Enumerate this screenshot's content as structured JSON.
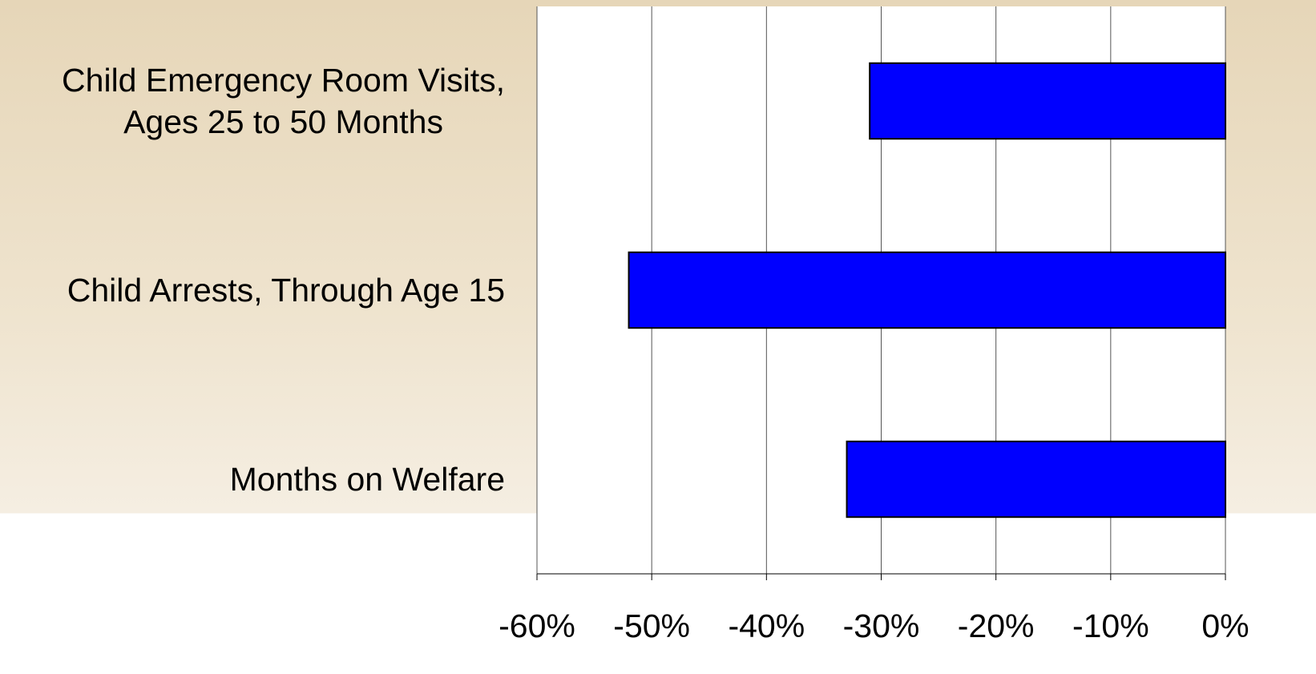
{
  "chart_data": {
    "type": "bar",
    "orientation": "horizontal",
    "categories": [
      "Child Emergency Room Visits,\nAges 25 to 50 Months",
      "Child Arrests, Through Age 15",
      "Months on Welfare"
    ],
    "values": [
      -31,
      -52,
      -33
    ],
    "color": "#0000ff",
    "xlim": [
      -60,
      0
    ],
    "xticks": [
      {
        "value": -60,
        "label": "-60%"
      },
      {
        "value": -50,
        "label": "-50%"
      },
      {
        "value": -40,
        "label": "-40%"
      },
      {
        "value": -30,
        "label": "-30%"
      },
      {
        "value": -20,
        "label": "-20%"
      },
      {
        "value": -10,
        "label": "-10%"
      },
      {
        "value": 0,
        "label": "0%"
      }
    ],
    "grid": true
  }
}
